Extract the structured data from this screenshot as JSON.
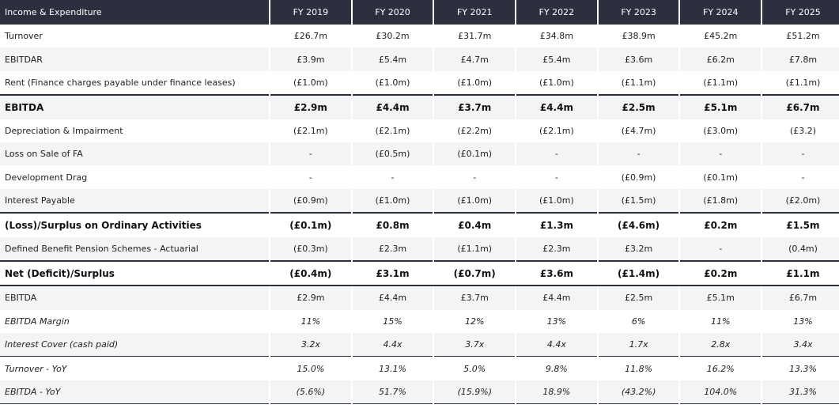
{
  "table": {
    "header": {
      "label": "Income & Expenditure",
      "years": [
        "FY 2019",
        "FY 2020",
        "FY 2021",
        "FY 2022",
        "FY 2023",
        "FY 2024",
        "FY 2025"
      ]
    },
    "rows": [
      {
        "label": "Turnover",
        "values": [
          "£26.7m",
          "£30.2m",
          "£31.7m",
          "£34.8m",
          "£38.9m",
          "£45.2m",
          "£51.2m"
        ]
      },
      {
        "label": "EBITDAR",
        "values": [
          "£3.9m",
          "£5.4m",
          "£4.7m",
          "£5.4m",
          "£3.6m",
          "£6.2m",
          "£7.8m"
        ]
      },
      {
        "label": "Rent (Finance charges payable under finance leases)",
        "values": [
          "(£1.0m)",
          "(£1.0m)",
          "(£1.0m)",
          "(£1.0m)",
          "(£1.1m)",
          "(£1.1m)",
          "(£1.1m)"
        ]
      },
      {
        "label": "EBITDA",
        "values": [
          "£2.9m",
          "£4.4m",
          "£3.7m",
          "£4.4m",
          "£2.5m",
          "£5.1m",
          "£6.7m"
        ]
      },
      {
        "label": "Depreciation & Impairment",
        "values": [
          "(£2.1m)",
          "(£2.1m)",
          "(£2.2m)",
          "(£2.1m)",
          "(£4.7m)",
          "(£3.0m)",
          "(£3.2)"
        ]
      },
      {
        "label": "Loss on Sale of FA",
        "values": [
          "-",
          "(£0.5m)",
          "(£0.1m)",
          "-",
          "-",
          "-",
          "-"
        ]
      },
      {
        "label": "Development Drag",
        "values": [
          "-",
          "-",
          "-",
          "-",
          "(£0.9m)",
          "(£0.1m)",
          "-"
        ]
      },
      {
        "label": "Interest Payable",
        "values": [
          "(£0.9m)",
          "(£1.0m)",
          "(£1.0m)",
          "(£1.0m)",
          "(£1.5m)",
          "(£1.8m)",
          "(£2.0m)"
        ]
      },
      {
        "label": "(Loss)/Surplus on Ordinary Activities",
        "values": [
          "(£0.1m)",
          "£0.8m",
          "£0.4m",
          "£1.3m",
          "(£4.6m)",
          "£0.2m",
          "£1.5m"
        ]
      },
      {
        "label": "Defined Benefit Pension Schemes - Actuarial",
        "values": [
          "(£0.3m)",
          "£2.3m",
          "(£1.1m)",
          "£2.3m",
          "£3.2m",
          "-",
          "(0.4m)"
        ]
      },
      {
        "label": "Net (Deficit)/Surplus",
        "values": [
          "(£0.4m)",
          "£3.1m",
          "(£0.7m)",
          "£3.6m",
          "(£1.4m)",
          "£0.2m",
          "£1.1m"
        ]
      },
      {
        "label": "EBITDA",
        "values": [
          "£2.9m",
          "£4.4m",
          "£3.7m",
          "£4.4m",
          "£2.5m",
          "£5.1m",
          "£6.7m"
        ]
      },
      {
        "label": "EBITDA Margin",
        "values": [
          "11%",
          "15%",
          "12%",
          "13%",
          "6%",
          "11%",
          "13%"
        ]
      },
      {
        "label": "Interest Cover (cash paid)",
        "values": [
          "3.2x",
          "4.4x",
          "3.7x",
          "4.4x",
          "1.7x",
          "2.8x",
          "3.4x"
        ]
      },
      {
        "label": "Turnover - YoY",
        "values": [
          "15.0%",
          "13.1%",
          "5.0%",
          "9.8%",
          "11.8%",
          "16.2%",
          "13.3%"
        ]
      },
      {
        "label": "EBITDA - YoY",
        "values": [
          "(5.6%)",
          "51.7%",
          "(15.9%)",
          "18.9%",
          "(43.2%)",
          "104.0%",
          "31.3%"
        ]
      }
    ]
  }
}
